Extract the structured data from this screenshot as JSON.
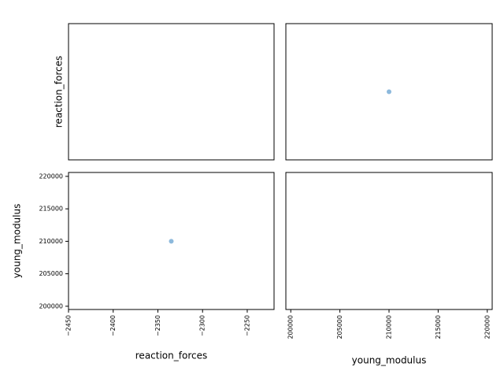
{
  "chart_data": [
    {
      "type": "scatter",
      "ylabel": "reaction_forces"
    },
    {
      "type": "scatter",
      "x": [
        210000
      ],
      "y": [
        -2335
      ],
      "color": "#8db9dc",
      "xlim": [
        199500,
        220500
      ],
      "ylim": [
        -2450,
        -2220
      ]
    },
    {
      "type": "scatter",
      "xlabel": "reaction_forces",
      "ylabel": "young_modulus",
      "x": [
        -2335
      ],
      "y": [
        210000
      ],
      "color": "#8db9dc",
      "xlim": [
        -2450,
        -2220
      ],
      "ylim": [
        199500,
        220600
      ],
      "xticks": [
        {
          "value": -2450,
          "label": "−2450"
        },
        {
          "value": -2400,
          "label": "−2400"
        },
        {
          "value": -2350,
          "label": "−2350"
        },
        {
          "value": -2300,
          "label": "−2300"
        },
        {
          "value": -2250,
          "label": "−2250"
        }
      ],
      "yticks": [
        200000,
        205000,
        210000,
        215000,
        220000
      ]
    },
    {
      "type": "scatter",
      "xlabel": "young_modulus",
      "xlim": [
        199500,
        220500
      ],
      "xticks": [
        200000,
        205000,
        210000,
        215000,
        220000
      ]
    }
  ]
}
